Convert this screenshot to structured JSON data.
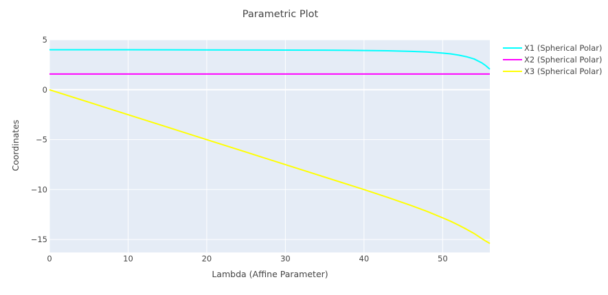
{
  "chart_data": {
    "type": "line",
    "title": "Parametric Plot",
    "xlabel": "Lambda (Affine Parameter)",
    "ylabel": "Coordinates",
    "xlim": [
      0,
      56
    ],
    "ylim": [
      -16.3,
      5
    ],
    "x_ticks": [
      0,
      10,
      20,
      30,
      40,
      50
    ],
    "y_ticks": [
      5,
      0,
      -5,
      -10,
      -15
    ],
    "y_tick_labels": [
      "5",
      "0",
      "−5",
      "−10",
      "−15"
    ],
    "grid": true,
    "legend_position": "top-right",
    "background": "#E5ECF6",
    "series": [
      {
        "name": "X1 (Spherical Polar)",
        "color": "#00FFFF",
        "x": [
          0,
          10,
          20,
          30,
          35,
          40,
          43,
          46,
          48,
          50,
          51,
          52,
          53,
          54,
          55,
          55.5,
          56
        ],
        "y": [
          4.0,
          4.0,
          3.99,
          3.97,
          3.96,
          3.93,
          3.9,
          3.84,
          3.78,
          3.67,
          3.59,
          3.47,
          3.31,
          3.08,
          2.68,
          2.4,
          2.05
        ]
      },
      {
        "name": "X2 (Spherical Polar)",
        "color": "#FF00FF",
        "x": [
          0,
          10,
          20,
          30,
          40,
          50,
          56
        ],
        "y": [
          1.5708,
          1.5708,
          1.5708,
          1.5708,
          1.5708,
          1.5708,
          1.5708
        ]
      },
      {
        "name": "X3 (Spherical Polar)",
        "color": "#FFFF00",
        "x": [
          0,
          5,
          10,
          15,
          20,
          25,
          30,
          35,
          40,
          43,
          46,
          48,
          50,
          51,
          52,
          53,
          54,
          55,
          55.5,
          56
        ],
        "y": [
          0,
          -1.25,
          -2.5,
          -3.75,
          -5.0,
          -6.25,
          -7.5,
          -8.75,
          -10.0,
          -10.78,
          -11.6,
          -12.18,
          -12.83,
          -13.17,
          -13.55,
          -13.96,
          -14.4,
          -14.92,
          -15.17,
          -15.4
        ]
      }
    ]
  }
}
